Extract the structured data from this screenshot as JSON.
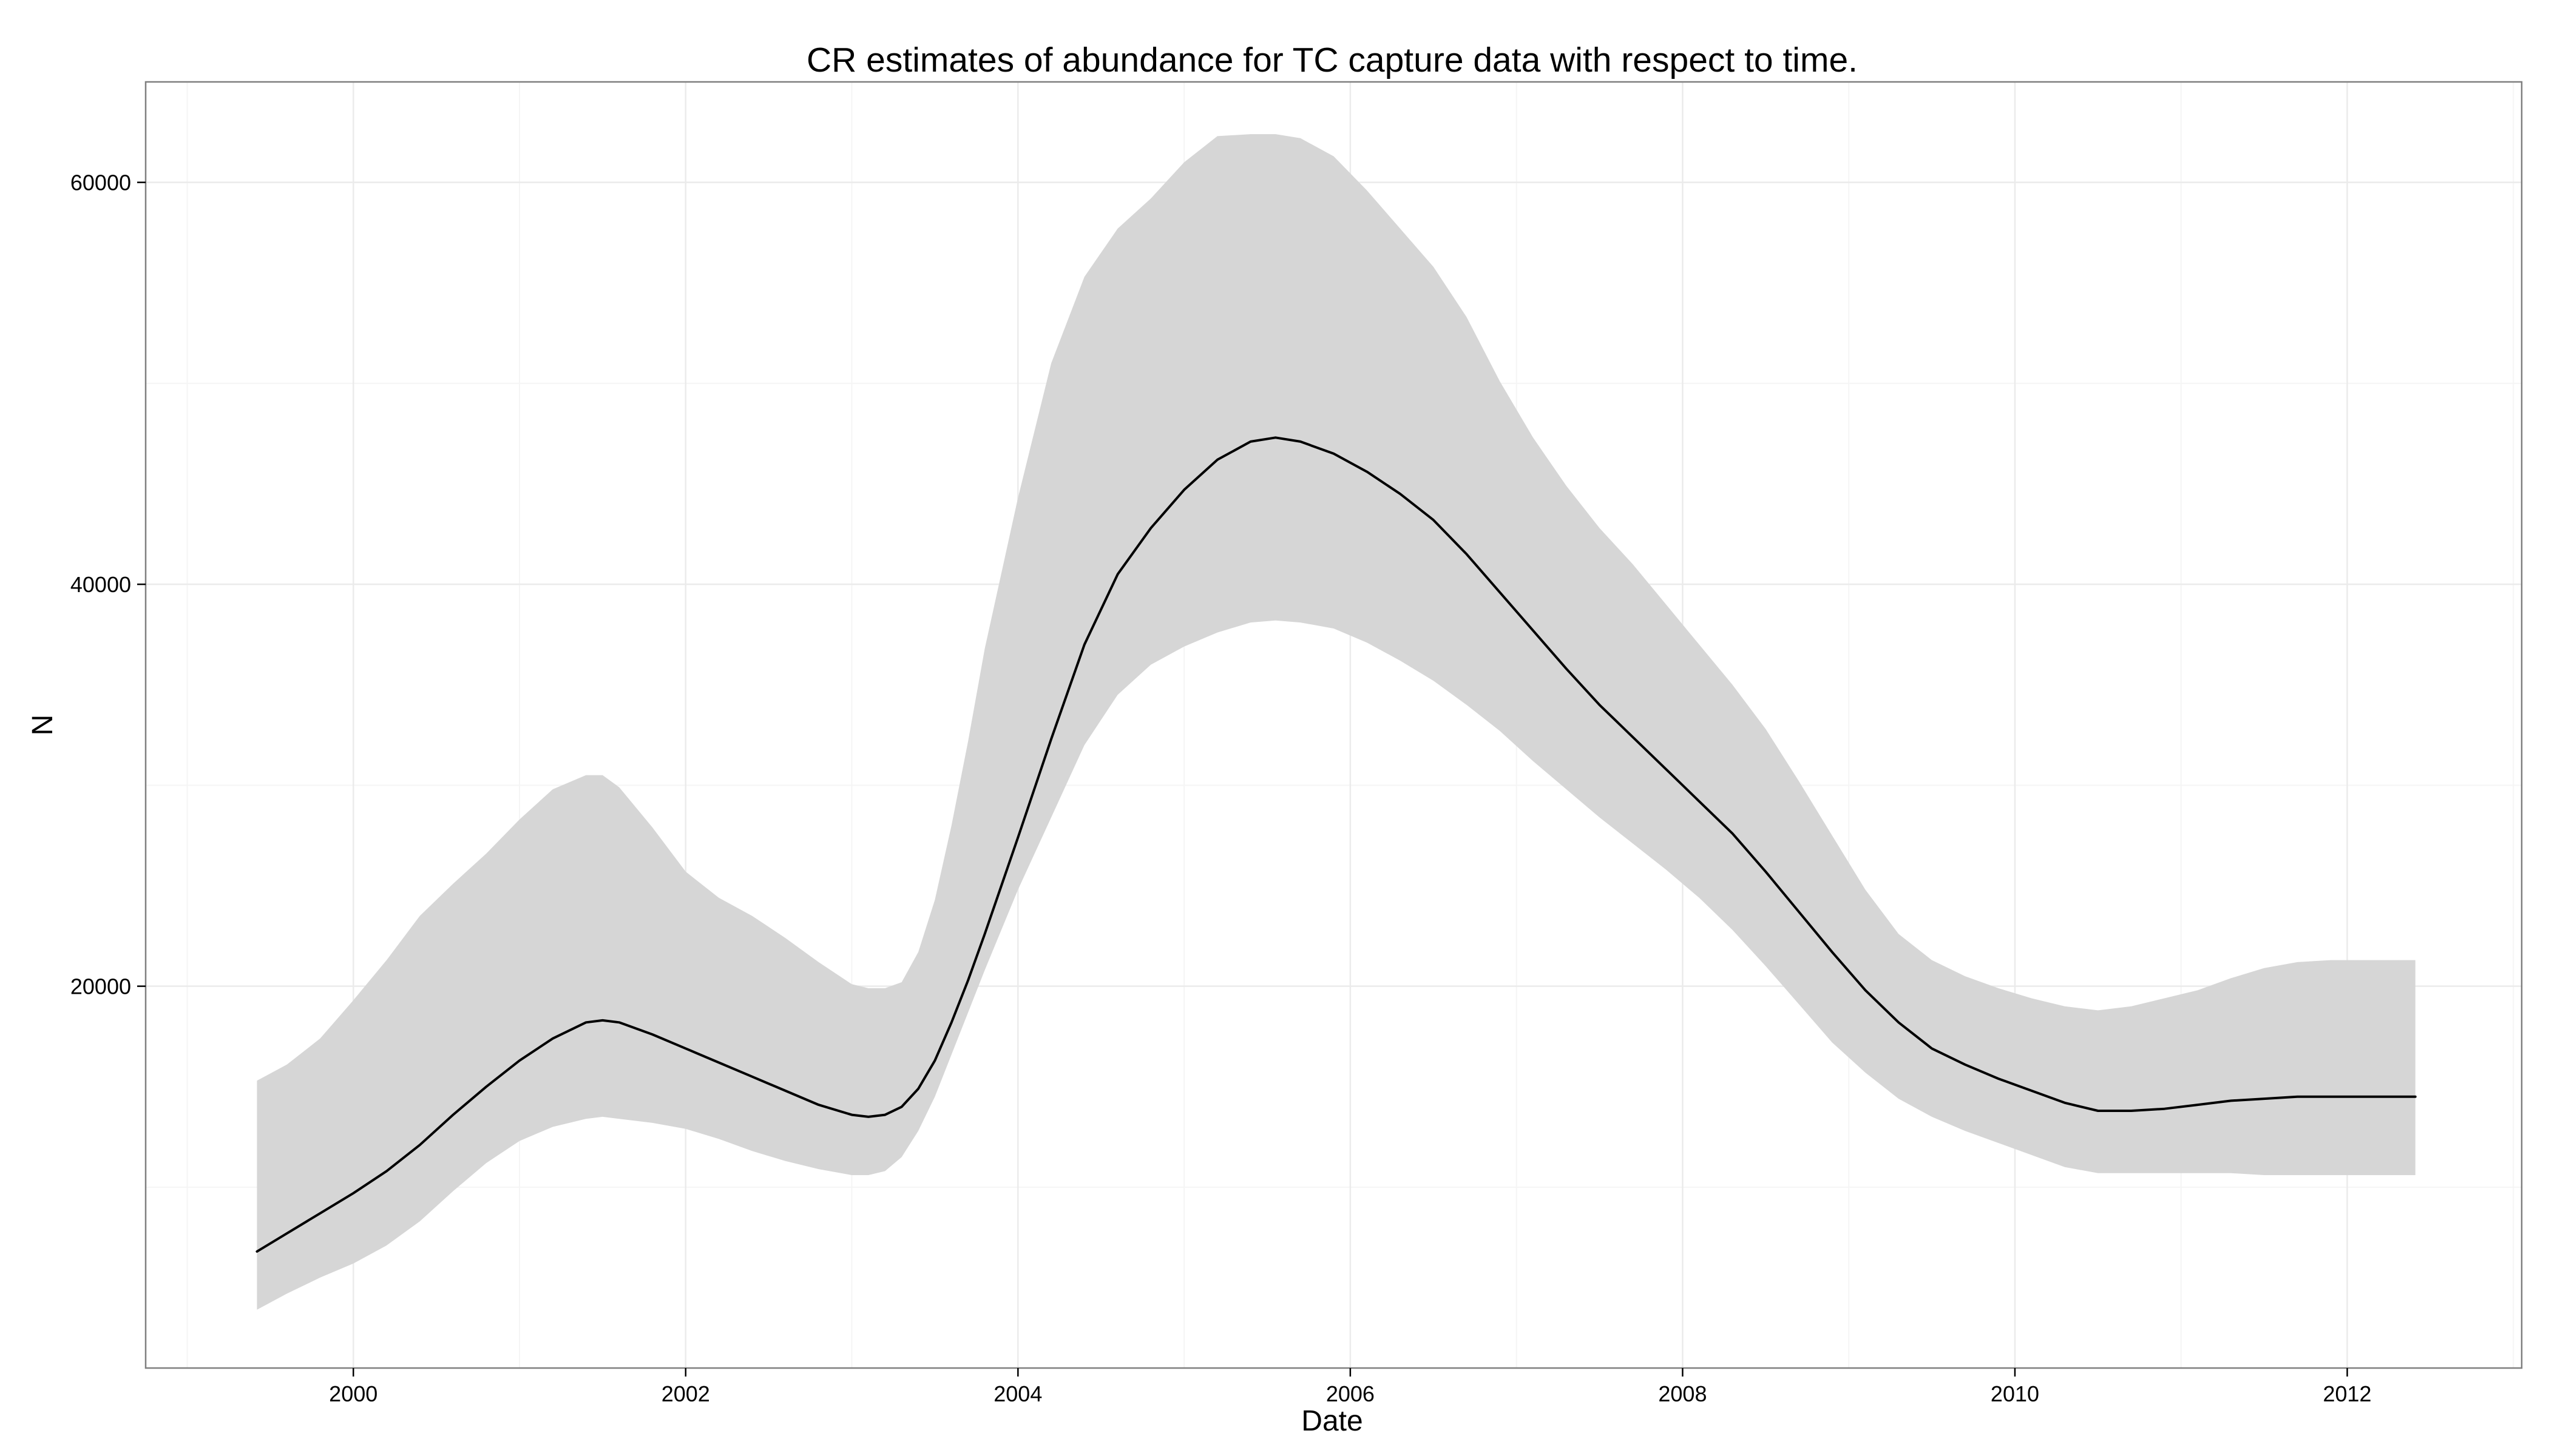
{
  "colors": {
    "background": "#ffffff",
    "panel_border": "#7f7f7f",
    "grid_major": "#ebebeb",
    "grid_minor": "#f5f5f5",
    "ribbon": "#d6d6d6",
    "line": "#000000",
    "ticks": "#000000"
  },
  "chart_data": {
    "type": "line",
    "title": "CR estimates of abundance for TC capture data with respect to time.",
    "xlabel": "Date",
    "ylabel": "N",
    "x_is_date": true,
    "xlim": [
      1998.75,
      2013.05
    ],
    "ylim": [
      1000,
      65000
    ],
    "grid": true,
    "legend": "none",
    "x_ticks": [
      {
        "value": 2000,
        "label": "2000"
      },
      {
        "value": 2002,
        "label": "2002"
      },
      {
        "value": 2004,
        "label": "2004"
      },
      {
        "value": 2006,
        "label": "2006"
      },
      {
        "value": 2008,
        "label": "2008"
      },
      {
        "value": 2010,
        "label": "2010"
      },
      {
        "value": 2012,
        "label": "2012"
      }
    ],
    "y_ticks": [
      {
        "value": 20000,
        "label": "20000"
      },
      {
        "value": 40000,
        "label": "40000"
      },
      {
        "value": 60000,
        "label": "60000"
      }
    ],
    "series": [
      {
        "x": [
          1999.42,
          1999.6,
          1999.8,
          2000.0,
          2000.2,
          2000.4,
          2000.6,
          2000.8,
          2001.0,
          2001.2,
          2001.4,
          2001.5,
          2001.6,
          2001.8,
          2002.0,
          2002.2,
          2002.4,
          2002.6,
          2002.8,
          2003.0,
          2003.1,
          2003.2,
          2003.3,
          2003.4,
          2003.5,
          2003.6,
          2003.7,
          2003.8,
          2004.0,
          2004.2,
          2004.4,
          2004.6,
          2004.8,
          2005.0,
          2005.2,
          2005.4,
          2005.55,
          2005.7,
          2005.9,
          2006.1,
          2006.3,
          2006.5,
          2006.7,
          2006.9,
          2007.1,
          2007.3,
          2007.5,
          2007.7,
          2007.9,
          2008.1,
          2008.3,
          2008.5,
          2008.7,
          2008.9,
          2009.1,
          2009.3,
          2009.5,
          2009.7,
          2009.9,
          2010.1,
          2010.3,
          2010.5,
          2010.7,
          2010.9,
          2011.1,
          2011.3,
          2011.5,
          2011.7,
          2011.9,
          2012.1,
          2012.3,
          2012.41
        ],
        "values": [
          6800,
          7700,
          8700,
          9700,
          10800,
          12100,
          13600,
          15000,
          16300,
          17400,
          18200,
          18300,
          18200,
          17600,
          16900,
          16200,
          15500,
          14800,
          14100,
          13600,
          13500,
          13600,
          14000,
          14900,
          16300,
          18200,
          20300,
          22600,
          27400,
          32300,
          37000,
          40500,
          42800,
          44700,
          46200,
          47100,
          47300,
          47100,
          46500,
          45600,
          44500,
          43200,
          41500,
          39600,
          37700,
          35800,
          34000,
          32400,
          30800,
          29200,
          27600,
          25700,
          23700,
          21700,
          19800,
          18200,
          16900,
          16100,
          15400,
          14800,
          14200,
          13800,
          13800,
          13900,
          14100,
          14300,
          14400,
          14500,
          14500,
          14500,
          14500,
          14500
        ],
        "lower": [
          3900,
          4700,
          5500,
          6200,
          7100,
          8300,
          9800,
          11200,
          12300,
          13000,
          13400,
          13500,
          13400,
          13200,
          12900,
          12400,
          11800,
          11300,
          10900,
          10600,
          10600,
          10800,
          11500,
          12800,
          14500,
          16600,
          18700,
          20800,
          24800,
          28400,
          32000,
          34500,
          36000,
          36900,
          37600,
          38100,
          38200,
          38100,
          37800,
          37100,
          36200,
          35200,
          34000,
          32700,
          31200,
          29800,
          28400,
          27100,
          25800,
          24400,
          22800,
          21000,
          19100,
          17200,
          15700,
          14400,
          13500,
          12800,
          12200,
          11600,
          11000,
          10700,
          10700,
          10700,
          10700,
          10700,
          10600,
          10600,
          10600,
          10600,
          10600,
          10600
        ],
        "upper": [
          15300,
          16100,
          17400,
          19300,
          21300,
          23500,
          25100,
          26600,
          28300,
          29800,
          30500,
          30500,
          29900,
          27900,
          25700,
          24400,
          23500,
          22400,
          21200,
          20100,
          19900,
          19900,
          20200,
          21700,
          24300,
          28000,
          32200,
          36800,
          44300,
          51000,
          55300,
          57700,
          59200,
          61000,
          62300,
          62400,
          62400,
          62200,
          61300,
          59600,
          57700,
          55800,
          53300,
          50100,
          47300,
          44900,
          42800,
          41000,
          39000,
          37000,
          35000,
          32800,
          30200,
          27500,
          24800,
          22600,
          21300,
          20500,
          19900,
          19400,
          19000,
          18800,
          19000,
          19400,
          19800,
          20400,
          20900,
          21200,
          21300,
          21300,
          21300,
          21300
        ]
      }
    ]
  }
}
